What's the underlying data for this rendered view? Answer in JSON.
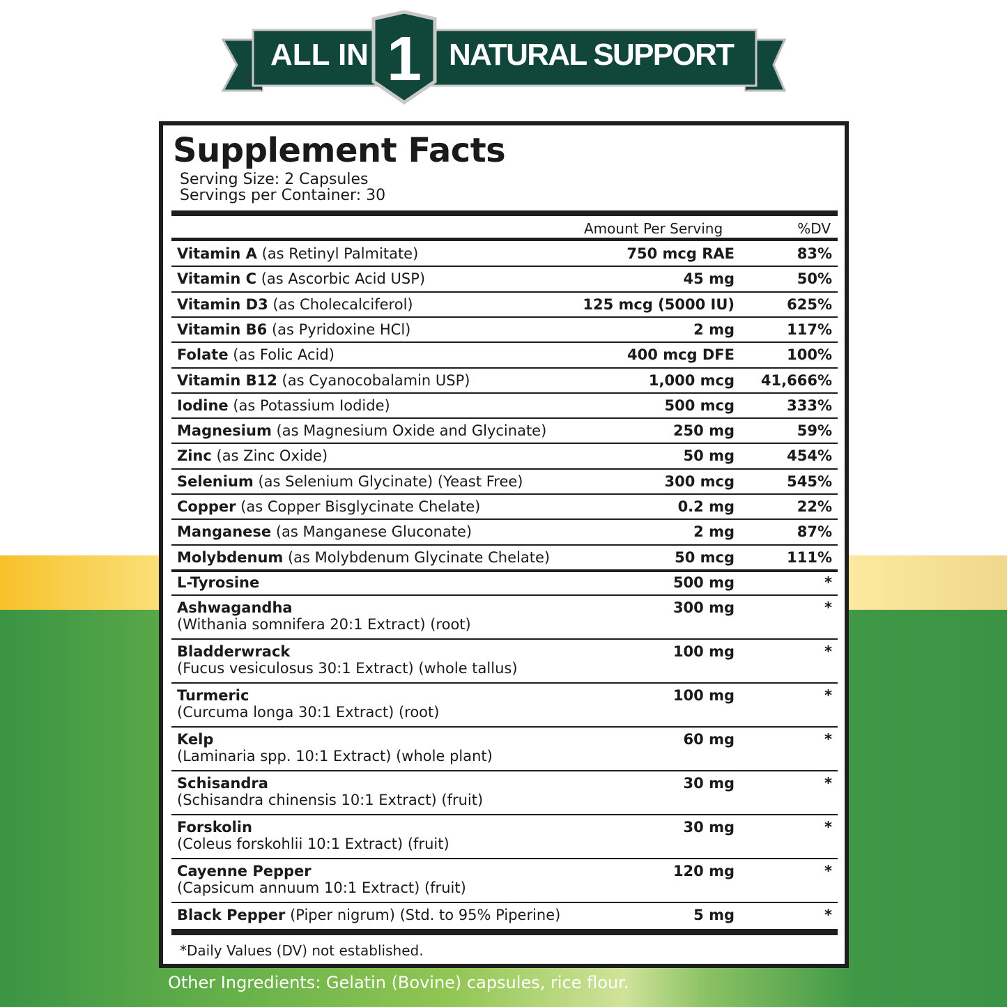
{
  "banner": {
    "left": "ALL IN",
    "number": "1",
    "right": "NATURAL SUPPORT",
    "color": "#11473a"
  },
  "label": {
    "title": "Supplement Facts",
    "serving_size": "Serving Size: 2 Capsules",
    "servings_per_container": "Servings per Container: 30",
    "col_amount": "Amount Per Serving",
    "col_dv": "%DV",
    "rows": [
      {
        "name": "Vitamin A",
        "detail": " (as Retinyl Palmitate)",
        "amount": "750 mcg RAE",
        "dv": "83%"
      },
      {
        "name": "Vitamin C",
        "detail": " (as Ascorbic Acid USP)",
        "amount": "45 mg",
        "dv": "50%"
      },
      {
        "name": "Vitamin D3",
        "detail": " (as Cholecalciferol)",
        "amount": "125 mcg (5000 IU)",
        "dv": "625%"
      },
      {
        "name": "Vitamin B6",
        "detail": " (as Pyridoxine HCl)",
        "amount": "2 mg",
        "dv": "117%"
      },
      {
        "name": "Folate",
        "detail": " (as Folic Acid)",
        "amount": "400 mcg DFE",
        "dv": "100%"
      },
      {
        "name": "Vitamin B12",
        "detail": " (as Cyanocobalamin USP)",
        "amount": "1,000 mcg",
        "dv": "41,666%"
      },
      {
        "name": "Iodine",
        "detail": " (as Potassium Iodide)",
        "amount": "500 mcg",
        "dv": "333%"
      },
      {
        "name": "Magnesium",
        "detail": " (as Magnesium Oxide and Glycinate)",
        "amount": "250 mg",
        "dv": "59%"
      },
      {
        "name": "Zinc",
        "detail": " (as Zinc Oxide)",
        "amount": "50 mg",
        "dv": "454%"
      },
      {
        "name": "Selenium",
        "detail": " (as Selenium Glycinate) (Yeast Free)",
        "amount": "300 mcg",
        "dv": "545%"
      },
      {
        "name": "Copper",
        "detail": " (as Copper Bisglycinate Chelate)",
        "amount": "0.2 mg",
        "dv": "22%"
      },
      {
        "name": "Manganese",
        "detail": " (as Manganese Gluconate)",
        "amount": "2 mg",
        "dv": "87%"
      },
      {
        "name": "Molybdenum",
        "detail": " (as Molybdenum Glycinate Chelate)",
        "amount": "50 mcg",
        "dv": "111%"
      },
      {
        "name": "L-Tyrosine",
        "detail": "",
        "amount": "500 mg",
        "dv": "*"
      },
      {
        "name": "Ashwagandha",
        "sub": "(Withania somnifera 20:1 Extract) (root)",
        "amount": "300 mg",
        "dv": "*"
      },
      {
        "name": "Bladderwrack",
        "sub": "(Fucus vesiculosus 30:1 Extract) (whole tallus)",
        "amount": "100 mg",
        "dv": "*"
      },
      {
        "name": "Turmeric",
        "sub": "(Curcuma longa 30:1 Extract) (root)",
        "amount": "100 mg",
        "dv": "*"
      },
      {
        "name": "Kelp",
        "sub": "(Laminaria spp. 10:1 Extract) (whole plant)",
        "amount": "60 mg",
        "dv": "*"
      },
      {
        "name": "Schisandra",
        "sub": "(Schisandra chinensis 10:1 Extract) (fruit)",
        "amount": "30 mg",
        "dv": "*"
      },
      {
        "name": "Forskolin",
        "sub": "(Coleus forskohlii 10:1 Extract) (fruit)",
        "amount": "30 mg",
        "dv": "*"
      },
      {
        "name": "Cayenne Pepper",
        "sub": "(Capsicum annuum 10:1 Extract) (fruit)",
        "amount": "120 mg",
        "dv": "*"
      },
      {
        "name": "Black Pepper",
        "detail": " (Piper nigrum) (Std. to 95% Piperine)",
        "amount": "5 mg",
        "dv": "*"
      }
    ],
    "footnote": "*Daily Values (DV) not established."
  },
  "other_ingredients": "Other Ingredients: Gelatin (Bovine) capsules, rice flour."
}
